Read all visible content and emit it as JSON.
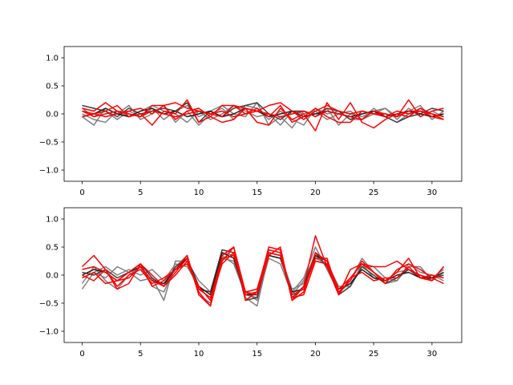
{
  "chart_data": [
    {
      "type": "line",
      "title": "",
      "xlabel": "",
      "ylabel": "",
      "xlim": [
        -1.55,
        32.55
      ],
      "ylim": [
        -1.2,
        1.2
      ],
      "xticks": [
        0,
        5,
        10,
        15,
        20,
        25,
        30
      ],
      "yticks": [
        -1.0,
        -0.5,
        0.0,
        0.5,
        1.0
      ],
      "ytick_labels": [
        "−1.0",
        "−0.5",
        "0.0",
        "0.5",
        "1.0"
      ],
      "grid": false,
      "x": [
        0,
        1,
        2,
        3,
        4,
        5,
        6,
        7,
        8,
        9,
        10,
        11,
        12,
        13,
        14,
        15,
        16,
        17,
        18,
        19,
        20,
        21,
        22,
        23,
        24,
        25,
        26,
        27,
        28,
        29,
        30,
        31
      ],
      "series": [
        {
          "color": "#7f7f7f",
          "values": [
            0.1,
            -0.05,
            0.05,
            -0.1,
            0.05,
            -0.05,
            0.1,
            -0.1,
            0.05,
            0.15,
            -0.05,
            0.05,
            0.15,
            0.0,
            -0.05,
            0.2,
            -0.2,
            -0.05,
            -0.25,
            0.05,
            0.0,
            0.1,
            -0.2,
            0.0,
            -0.05,
            0.05,
            0.1,
            -0.1,
            0.1,
            -0.05,
            0.05,
            -0.05
          ]
        },
        {
          "color": "#7f7f7f",
          "values": [
            -0.05,
            -0.2,
            0.1,
            0.0,
            0.15,
            -0.1,
            0.0,
            0.15,
            -0.15,
            0.05,
            -0.2,
            0.0,
            0.1,
            -0.1,
            0.15,
            0.1,
            -0.1,
            0.05,
            -0.1,
            -0.2,
            0.1,
            0.0,
            0.05,
            -0.1,
            -0.1,
            0.1,
            -0.05,
            -0.15,
            0.0,
            0.1,
            -0.05,
            0.0
          ]
        },
        {
          "color": "#7f7f7f",
          "values": [
            0.0,
            -0.1,
            -0.15,
            0.05,
            -0.05,
            0.05,
            0.15,
            0.05,
            0.0,
            -0.15,
            0.05,
            -0.1,
            0.0,
            0.15,
            0.05,
            -0.05,
            0.0,
            -0.2,
            0.05,
            0.0,
            0.05,
            -0.1,
            0.0,
            0.05,
            -0.1,
            0.0,
            0.1,
            -0.05,
            0.05,
            0.15,
            -0.1,
            0.05
          ]
        },
        {
          "color": "#3f3f3f",
          "values": [
            0.15,
            0.1,
            0.05,
            -0.05,
            0.1,
            0.0,
            0.05,
            0.1,
            0.05,
            0.2,
            -0.15,
            0.05,
            -0.05,
            0.1,
            0.15,
            0.2,
            0.0,
            -0.1,
            0.05,
            0.05,
            -0.05,
            0.1,
            0.05,
            -0.1,
            0.0,
            0.05,
            -0.05,
            -0.15,
            -0.05,
            0.0,
            0.1,
            0.05
          ]
        },
        {
          "color": "#1f1f1f",
          "values": [
            -0.05,
            0.0,
            0.1,
            0.0,
            -0.05,
            0.05,
            0.1,
            0.0,
            0.05,
            -0.05,
            0.0,
            0.05,
            -0.05,
            0.0,
            0.1,
            0.05,
            -0.05,
            0.0,
            0.05,
            -0.05,
            0.0,
            0.05,
            0.0,
            -0.05,
            0.0,
            0.05,
            -0.05,
            0.0,
            0.05,
            0.0,
            -0.05,
            0.0
          ]
        },
        {
          "color": "#ff0000",
          "values": [
            0.1,
            0.05,
            0.2,
            0.05,
            0.0,
            -0.05,
            0.15,
            0.15,
            0.2,
            0.1,
            0.05,
            0.0,
            -0.05,
            0.15,
            0.1,
            0.05,
            0.15,
            0.2,
            0.05,
            -0.1,
            0.05,
            0.15,
            0.05,
            0.0,
            0.05,
            0.0,
            0.0,
            -0.05,
            0.25,
            -0.05,
            0.05,
            0.1
          ]
        },
        {
          "color": "#ff0000",
          "values": [
            -0.05,
            0.0,
            0.05,
            0.15,
            -0.05,
            0.0,
            -0.2,
            0.05,
            0.0,
            0.25,
            -0.15,
            -0.05,
            -0.15,
            -0.1,
            0.1,
            -0.15,
            -0.2,
            0.1,
            -0.1,
            0.0,
            -0.3,
            0.2,
            -0.1,
            0.2,
            -0.15,
            -0.25,
            -0.1,
            0.0,
            -0.05,
            0.1,
            0.0,
            -0.1
          ]
        },
        {
          "color": "#ff0000",
          "values": [
            0.05,
            0.0,
            -0.05,
            0.0,
            0.05,
            0.1,
            0.0,
            0.15,
            -0.1,
            0.05,
            0.1,
            -0.05,
            0.15,
            0.15,
            0.0,
            0.1,
            -0.05,
            0.15,
            -0.15,
            -0.05,
            0.1,
            -0.05,
            -0.15,
            -0.15,
            0.05,
            0.0,
            -0.05,
            0.05,
            0.0,
            0.05,
            0.0,
            -0.05
          ]
        },
        {
          "color": "#ff0000",
          "values": [
            0.05,
            -0.05,
            0.0,
            0.05,
            0.0,
            -0.05,
            0.05,
            0.0,
            -0.05,
            0.0,
            0.05,
            0.0,
            0.05,
            -0.05,
            0.0,
            0.05,
            0.0,
            -0.05,
            0.0,
            0.05,
            -0.05,
            0.05,
            0.0,
            -0.05,
            -0.1,
            0.05,
            0.0,
            -0.05,
            0.05,
            0.05,
            -0.05,
            -0.1
          ]
        }
      ]
    },
    {
      "type": "line",
      "title": "",
      "xlabel": "",
      "ylabel": "",
      "xlim": [
        -1.55,
        32.55
      ],
      "ylim": [
        -1.2,
        1.2
      ],
      "xticks": [
        0,
        5,
        10,
        15,
        20,
        25,
        30
      ],
      "yticks": [
        -1.0,
        -0.5,
        0.0,
        0.5,
        1.0
      ],
      "ytick_labels": [
        "−1.0",
        "−0.5",
        "0.0",
        "0.5",
        "1.0"
      ],
      "grid": false,
      "x": [
        0,
        1,
        2,
        3,
        4,
        5,
        6,
        7,
        8,
        9,
        10,
        11,
        12,
        13,
        14,
        15,
        16,
        17,
        18,
        19,
        20,
        21,
        22,
        23,
        24,
        25,
        26,
        27,
        28,
        29,
        30,
        31
      ],
      "series": [
        {
          "color": "#7f7f7f",
          "values": [
            -0.25,
            0.05,
            -0.05,
            0.15,
            0.05,
            -0.1,
            -0.05,
            -0.45,
            0.25,
            0.25,
            -0.1,
            -0.3,
            0.4,
            0.35,
            -0.4,
            -0.55,
            0.35,
            0.3,
            -0.3,
            -0.05,
            0.5,
            0.1,
            -0.3,
            -0.1,
            0.3,
            0.05,
            -0.15,
            -0.1,
            0.15,
            0.15,
            -0.1,
            0.05
          ]
        },
        {
          "color": "#7f7f7f",
          "values": [
            -0.15,
            0.15,
            -0.1,
            -0.25,
            0.0,
            0.15,
            -0.2,
            -0.3,
            0.15,
            0.35,
            -0.35,
            -0.5,
            0.35,
            0.2,
            -0.35,
            -0.4,
            0.4,
            0.35,
            -0.25,
            -0.15,
            0.3,
            0.2,
            -0.2,
            -0.2,
            0.2,
            -0.05,
            -0.1,
            0.05,
            0.1,
            0.0,
            -0.05,
            0.1
          ]
        },
        {
          "color": "#7f7f7f",
          "values": [
            -0.05,
            0.05,
            0.15,
            0.0,
            0.1,
            0.0,
            0.1,
            -0.1,
            0.2,
            0.15,
            -0.2,
            -0.45,
            0.3,
            0.25,
            -0.3,
            -0.45,
            0.3,
            0.2,
            -0.35,
            -0.1,
            0.35,
            0.15,
            -0.3,
            -0.15,
            0.15,
            0.15,
            -0.05,
            -0.1,
            0.2,
            0.05,
            0.0,
            -0.1
          ]
        },
        {
          "color": "#3f3f3f",
          "values": [
            0.05,
            0.0,
            0.1,
            -0.05,
            0.05,
            0.2,
            -0.05,
            -0.2,
            0.15,
            0.3,
            -0.25,
            -0.3,
            0.45,
            0.4,
            -0.45,
            -0.4,
            0.4,
            0.35,
            -0.4,
            -0.2,
            0.4,
            0.15,
            -0.35,
            -0.2,
            0.15,
            0.0,
            -0.15,
            -0.05,
            0.1,
            -0.05,
            -0.05,
            0.0
          ]
        },
        {
          "color": "#1f1f1f",
          "values": [
            0.0,
            0.1,
            0.05,
            -0.1,
            0.05,
            0.15,
            -0.1,
            -0.15,
            0.1,
            0.3,
            -0.2,
            -0.35,
            0.4,
            0.3,
            -0.35,
            -0.35,
            0.35,
            0.3,
            -0.3,
            -0.25,
            0.35,
            0.25,
            -0.25,
            -0.15,
            0.1,
            -0.05,
            -0.1,
            0.0,
            0.05,
            -0.05,
            -0.05,
            0.05
          ]
        },
        {
          "color": "#ff0000",
          "values": [
            0.15,
            0.35,
            0.1,
            -0.25,
            -0.15,
            0.2,
            -0.2,
            -0.1,
            0.1,
            0.35,
            -0.35,
            -0.55,
            0.25,
            0.5,
            -0.45,
            -0.3,
            0.5,
            0.45,
            -0.45,
            -0.2,
            0.7,
            0.15,
            -0.35,
            0.1,
            0.2,
            0.15,
            0.15,
            0.25,
            0.1,
            0.0,
            -0.1,
            0.15
          ]
        },
        {
          "color": "#ff0000",
          "values": [
            -0.05,
            0.05,
            -0.15,
            -0.1,
            0.05,
            0.2,
            0.0,
            -0.2,
            0.0,
            0.25,
            -0.3,
            -0.55,
            0.35,
            0.5,
            -0.3,
            -0.25,
            0.45,
            0.4,
            -0.35,
            -0.25,
            0.3,
            0.3,
            -0.35,
            -0.05,
            0.2,
            0.05,
            -0.1,
            0.05,
            0.3,
            -0.05,
            -0.1,
            0.15
          ]
        },
        {
          "color": "#ff0000",
          "values": [
            0.1,
            0.15,
            0.05,
            -0.1,
            -0.05,
            0.15,
            -0.1,
            -0.2,
            0.05,
            0.3,
            -0.25,
            -0.4,
            0.3,
            0.35,
            -0.35,
            -0.3,
            0.4,
            0.35,
            -0.4,
            -0.35,
            0.25,
            0.2,
            -0.3,
            -0.1,
            0.25,
            0.05,
            -0.15,
            0.1,
            0.2,
            0.1,
            -0.05,
            -0.15
          ]
        },
        {
          "color": "#ff0000",
          "values": [
            0.0,
            -0.1,
            0.1,
            -0.2,
            0.0,
            0.1,
            -0.15,
            -0.05,
            0.1,
            0.2,
            -0.2,
            -0.45,
            0.2,
            0.4,
            -0.3,
            -0.35,
            0.35,
            0.5,
            -0.45,
            -0.3,
            0.4,
            0.25,
            -0.25,
            -0.05,
            0.05,
            -0.1,
            -0.05,
            -0.05,
            0.15,
            -0.05,
            0.0,
            -0.05
          ]
        }
      ]
    }
  ]
}
